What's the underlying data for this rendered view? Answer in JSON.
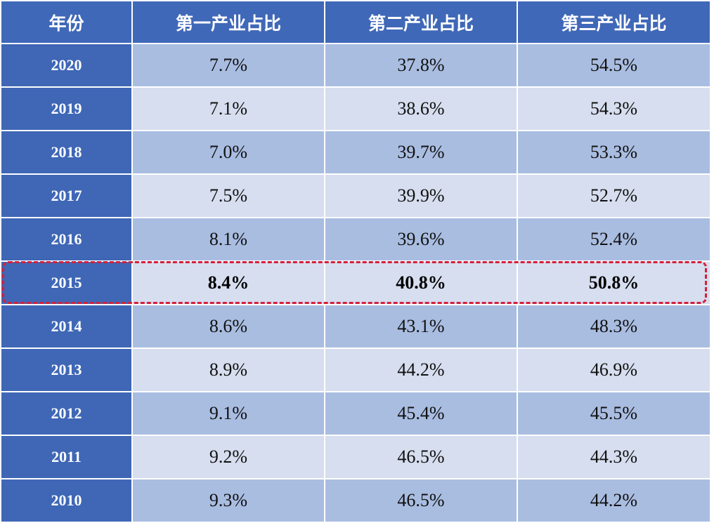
{
  "chart_data": {
    "type": "table",
    "columns": [
      "年份",
      "第一产业占比",
      "第二产业占比",
      "第三产业占比"
    ],
    "rows": [
      {
        "year": "2020",
        "primary": "7.7%",
        "secondary": "37.8%",
        "tertiary": "54.5%"
      },
      {
        "year": "2019",
        "primary": "7.1%",
        "secondary": "38.6%",
        "tertiary": "54.3%"
      },
      {
        "year": "2018",
        "primary": "7.0%",
        "secondary": "39.7%",
        "tertiary": "53.3%"
      },
      {
        "year": "2017",
        "primary": "7.5%",
        "secondary": "39.9%",
        "tertiary": "52.7%"
      },
      {
        "year": "2016",
        "primary": "8.1%",
        "secondary": "39.6%",
        "tertiary": "52.4%"
      },
      {
        "year": "2015",
        "primary": "8.4%",
        "secondary": "40.8%",
        "tertiary": "50.8%"
      },
      {
        "year": "2014",
        "primary": "8.6%",
        "secondary": "43.1%",
        "tertiary": "48.3%"
      },
      {
        "year": "2013",
        "primary": "8.9%",
        "secondary": "44.2%",
        "tertiary": "46.9%"
      },
      {
        "year": "2012",
        "primary": "9.1%",
        "secondary": "45.4%",
        "tertiary": "45.5%"
      },
      {
        "year": "2011",
        "primary": "9.2%",
        "secondary": "46.5%",
        "tertiary": "44.3%"
      },
      {
        "year": "2010",
        "primary": "9.3%",
        "secondary": "46.5%",
        "tertiary": "44.2%"
      }
    ],
    "highlighted_row": "2015"
  },
  "colors": {
    "header_bg": "#4068b8",
    "year_bg": "#3f67b6",
    "row_dark": "#a9bde1",
    "row_light": "#d6deef",
    "highlight_border": "#d61f3a"
  }
}
